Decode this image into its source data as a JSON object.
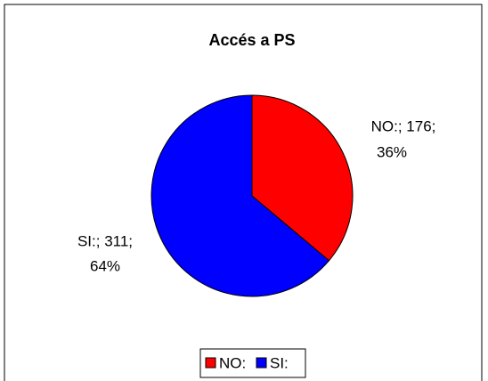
{
  "chart_data": {
    "type": "pie",
    "title": "Accés a PS",
    "categories": [
      "NO:",
      "SI:"
    ],
    "values": [
      176,
      311
    ],
    "value_labels": [
      [
        "NO:; 176;",
        "36%"
      ],
      [
        "SI:; 311;",
        "64%"
      ]
    ],
    "colors": [
      "#ff0000",
      "#0000ff"
    ],
    "legend": "bottom"
  }
}
